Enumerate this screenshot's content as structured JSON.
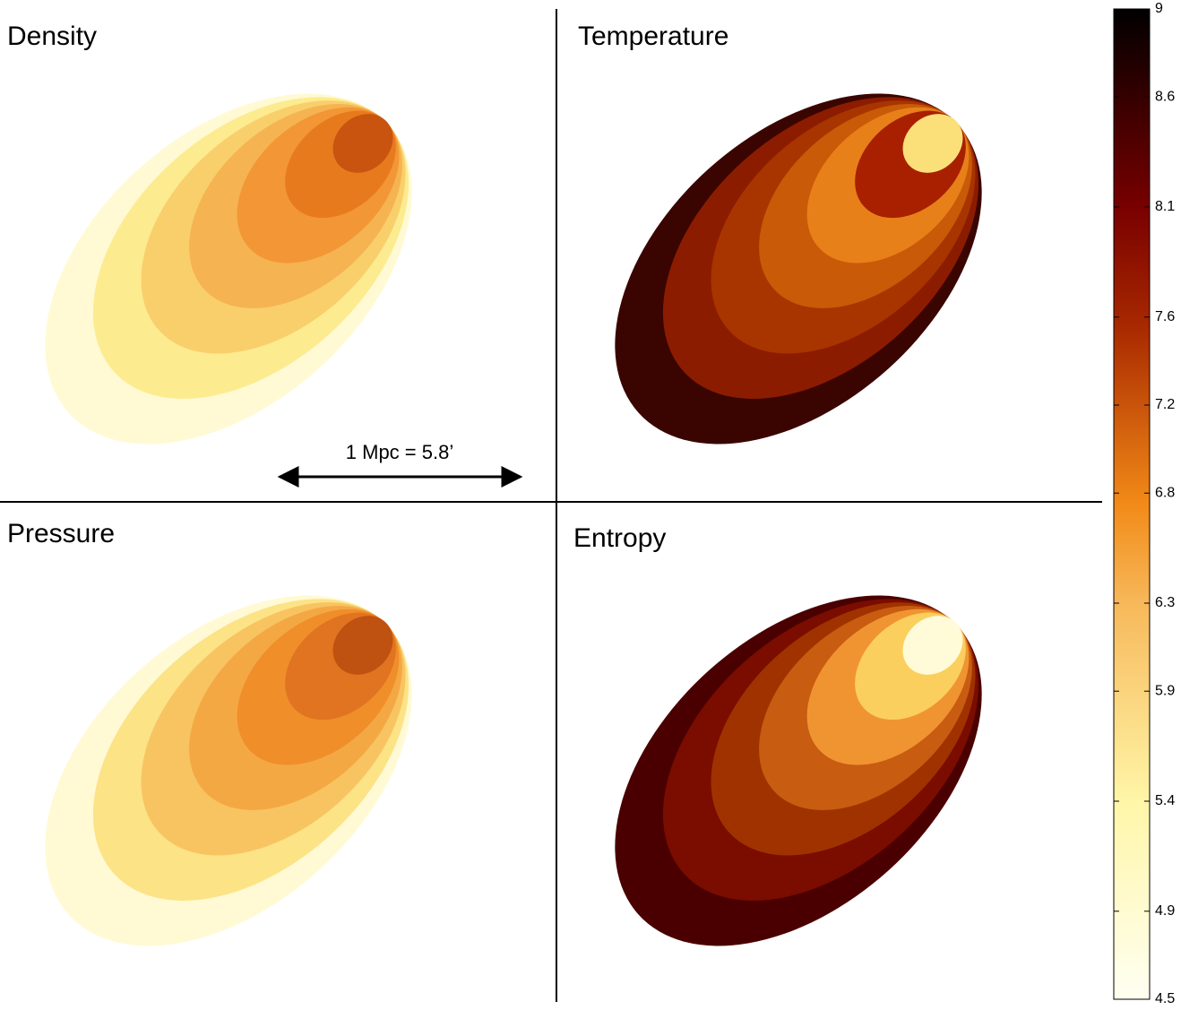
{
  "panels": [
    {
      "title": "Density"
    },
    {
      "title": "Temperature"
    },
    {
      "title": "Pressure"
    },
    {
      "title": "Entropy"
    }
  ],
  "scale_bar": "1 Mpc = 5.8’",
  "colorbar": {
    "clim": [
      4.5,
      9
    ],
    "ticks": [
      9,
      8.6,
      8.1,
      7.6,
      7.2,
      6.8,
      6.3,
      5.9,
      5.4,
      4.9,
      4.5
    ]
  }
}
